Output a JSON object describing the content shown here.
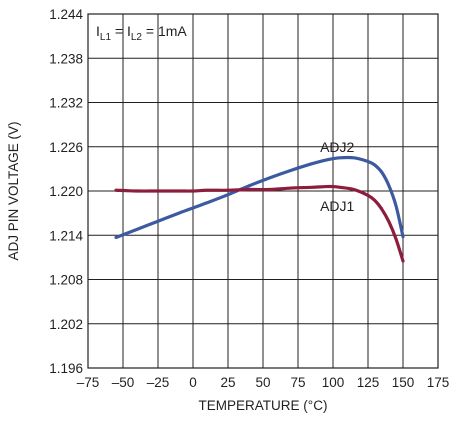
{
  "chart_data": {
    "type": "line",
    "title": "",
    "xlabel": "TEMPERATURE (°C)",
    "ylabel": "ADJ PIN VOLTAGE (V)",
    "xlim": [
      -75,
      175
    ],
    "ylim": [
      1.196,
      1.244
    ],
    "xticks": [
      -75,
      -50,
      -25,
      0,
      25,
      50,
      75,
      100,
      125,
      150,
      175
    ],
    "xtick_labels": [
      "–75",
      "–50",
      "–25",
      "0",
      "25",
      "50",
      "75",
      "100",
      "125",
      "150",
      "175"
    ],
    "yticks": [
      1.196,
      1.202,
      1.208,
      1.214,
      1.22,
      1.226,
      1.232,
      1.238,
      1.244
    ],
    "ytick_labels": [
      "1.196",
      "1.202",
      "1.208",
      "1.214",
      "1.220",
      "1.226",
      "1.232",
      "1.238",
      "1.244"
    ],
    "grid": true,
    "annotation": {
      "text_main": "I",
      "sub1": "L1",
      "mid": " = I",
      "sub2": "L2",
      "tail": " = 1mA"
    },
    "series": [
      {
        "name": "ADJ2",
        "color": "#3c5aa0",
        "x": [
          -55,
          -40,
          -25,
          -10,
          0,
          10,
          25,
          40,
          55,
          70,
          85,
          95,
          105,
          115,
          125,
          130,
          135,
          140,
          145,
          150
        ],
        "y": [
          1.2137,
          1.2148,
          1.2159,
          1.217,
          1.2177,
          1.2184,
          1.2195,
          1.2207,
          1.2218,
          1.2228,
          1.2237,
          1.2242,
          1.2245,
          1.2245,
          1.224,
          1.2235,
          1.2225,
          1.2207,
          1.218,
          1.2138
        ]
      },
      {
        "name": "ADJ1",
        "color": "#8c1d3c",
        "x": [
          -55,
          -40,
          -25,
          -10,
          0,
          10,
          25,
          40,
          55,
          70,
          85,
          95,
          100,
          105,
          115,
          125,
          130,
          135,
          140,
          145,
          150
        ],
        "y": [
          1.2201,
          1.22,
          1.22,
          1.22,
          1.22,
          1.2201,
          1.2201,
          1.2202,
          1.2202,
          1.2204,
          1.2205,
          1.2206,
          1.2206,
          1.2205,
          1.2202,
          1.2194,
          1.2187,
          1.2175,
          1.2158,
          1.2135,
          1.2105
        ]
      }
    ],
    "series_labels": [
      {
        "text": "ADJ2",
        "x": 103,
        "y": 1.2253
      },
      {
        "text": "ADJ1",
        "x": 103,
        "y": 1.2173
      }
    ]
  }
}
